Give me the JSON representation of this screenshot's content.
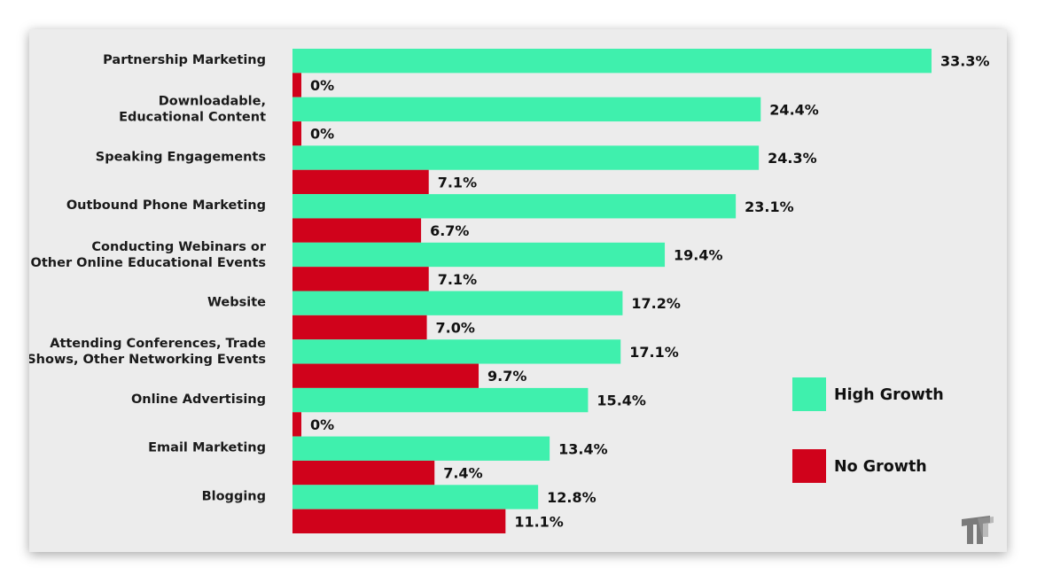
{
  "chart_data": {
    "type": "bar",
    "orientation": "horizontal",
    "categories": [
      "Partnership Marketing",
      "Downloadable,\nEducational Content",
      "Speaking Engagements",
      "Outbound Phone Marketing",
      "Conducting Webinars or\nOther Online Educational Events",
      "Website",
      "Attending Conferences, Trade\nShows, Other Networking Events",
      "Online Advertising",
      "Email Marketing",
      "Blogging"
    ],
    "series": [
      {
        "name": "High Growth",
        "color": "#3ff0ad",
        "values": [
          33.3,
          24.4,
          24.3,
          23.1,
          19.4,
          17.2,
          17.1,
          15.4,
          13.4,
          12.8
        ],
        "labels": [
          "33.3%",
          "24.4%",
          "24.3%",
          "23.1%",
          "19.4%",
          "17.2%",
          "17.1%",
          "15.4%",
          "13.4%",
          "12.8%"
        ]
      },
      {
        "name": "No Growth",
        "color": "#d0021b",
        "values": [
          0,
          0,
          7.1,
          6.7,
          7.1,
          7.0,
          9.7,
          0,
          7.4,
          11.1
        ],
        "labels": [
          "0%",
          "0%",
          "7.1%",
          "6.7%",
          "7.1%",
          "7.0%",
          "9.7%",
          "0%",
          "7.4%",
          "11.1%"
        ]
      }
    ],
    "xlim": [
      0,
      33.3
    ],
    "grid": false,
    "legend_position": "right"
  },
  "branding": {
    "logo_icon": "tt-logo-icon"
  }
}
